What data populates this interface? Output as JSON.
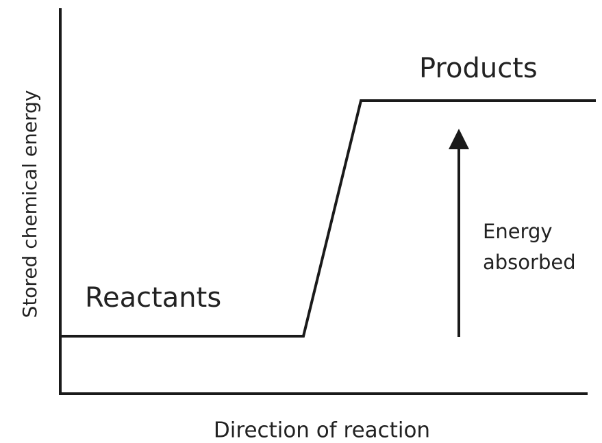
{
  "axes": {
    "y_label": "Stored chemical energy",
    "x_label": "Direction of reaction"
  },
  "levels": {
    "reactants": "Reactants",
    "products": "Products"
  },
  "annotation": {
    "lines": [
      "Energy",
      "absorbed"
    ]
  }
}
